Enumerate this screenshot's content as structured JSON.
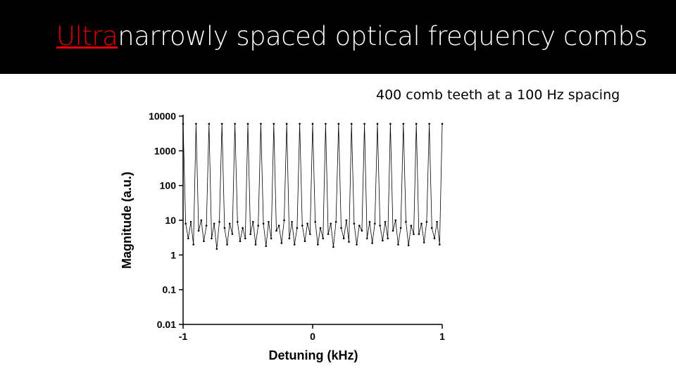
{
  "header": {
    "title_highlight": "Ultra",
    "title_rest": "narrowly spaced optical frequency combs"
  },
  "chart_data": {
    "type": "line",
    "annotation": "400 comb teeth at a 100 Hz spacing",
    "xlabel": "Detuning (kHz)",
    "ylabel": "Magnitude (a.u.)",
    "xlim": [
      -1,
      1
    ],
    "xticks": [
      -1,
      0,
      1
    ],
    "ylim": [
      0.01,
      10000
    ],
    "yticks": [
      0.01,
      0.1,
      1,
      10,
      100,
      1000,
      10000
    ],
    "log_y": true,
    "series": [
      {
        "color": "#000000",
        "x": [
          -1,
          -0.98,
          -0.96,
          -0.94,
          -0.92,
          -0.9,
          -0.88,
          -0.86,
          -0.84,
          -0.82,
          -0.8,
          -0.78,
          -0.76,
          -0.74,
          -0.72,
          -0.7,
          -0.68,
          -0.66,
          -0.64,
          -0.62,
          -0.6,
          -0.58,
          -0.56,
          -0.54,
          -0.52,
          -0.5,
          -0.48,
          -0.46,
          -0.44,
          -0.42,
          -0.4,
          -0.38,
          -0.36,
          -0.34,
          -0.32,
          -0.3,
          -0.28,
          -0.26,
          -0.24,
          -0.22,
          -0.2,
          -0.18,
          -0.16,
          -0.14,
          -0.12,
          -0.1,
          -0.08,
          -0.06,
          -0.04,
          -0.02,
          0,
          0.02,
          0.04,
          0.06,
          0.08,
          0.1,
          0.12,
          0.14,
          0.16,
          0.18,
          0.2,
          0.22,
          0.24,
          0.26,
          0.28,
          0.3,
          0.32,
          0.34,
          0.36,
          0.38,
          0.4,
          0.42,
          0.44,
          0.46,
          0.48,
          0.5,
          0.52,
          0.54,
          0.56,
          0.58,
          0.6,
          0.62,
          0.64,
          0.66,
          0.68,
          0.7,
          0.72,
          0.74,
          0.76,
          0.78,
          0.8,
          0.82,
          0.84,
          0.86,
          0.88,
          0.9,
          0.92,
          0.94,
          0.96,
          0.98,
          1
        ],
        "values": [
          6000,
          8,
          3,
          9,
          2,
          6000,
          5,
          10,
          2.5,
          7,
          6000,
          3,
          8,
          1.5,
          9,
          6000,
          6,
          2,
          8,
          4,
          6000,
          9,
          2.5,
          6,
          3,
          6000,
          4,
          9,
          2,
          7,
          6000,
          8,
          1.8,
          9,
          3,
          6000,
          5,
          7,
          2.2,
          10,
          6000,
          3,
          9,
          2,
          6,
          6000,
          7,
          2.5,
          8,
          4,
          6000,
          9,
          2,
          6,
          3,
          6000,
          4,
          8,
          1.7,
          9,
          6000,
          6,
          3,
          10,
          2.4,
          6000,
          8,
          2,
          7,
          5,
          6000,
          3,
          9,
          2.2,
          8,
          6000,
          7,
          2.6,
          9,
          3,
          6000,
          5,
          10,
          2,
          6,
          6000,
          9,
          1.9,
          7,
          4,
          6000,
          4,
          8,
          2.3,
          9,
          6000,
          6,
          3,
          9,
          2,
          6000
        ]
      }
    ]
  }
}
